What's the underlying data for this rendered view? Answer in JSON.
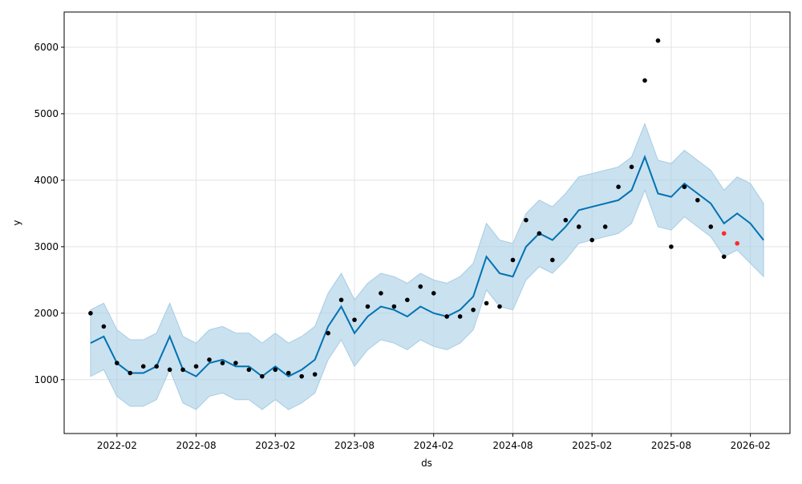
{
  "chart_data": {
    "type": "forecast",
    "xlabel": "ds",
    "ylabel": "y",
    "xlim": [
      "2021-10",
      "2026-05"
    ],
    "xticks": [
      "2022-02",
      "2022-08",
      "2023-02",
      "2023-08",
      "2024-02",
      "2024-08",
      "2025-02",
      "2025-08",
      "2026-02"
    ],
    "ylim": [
      190,
      6530
    ],
    "yticks": [
      1000,
      2000,
      3000,
      4000,
      5000,
      6000
    ],
    "grid": true,
    "forecast": {
      "color": "#0072b2",
      "band_color": "#a6cde4",
      "x": [
        "2021-12",
        "2022-01",
        "2022-02",
        "2022-03",
        "2022-04",
        "2022-05",
        "2022-06",
        "2022-07",
        "2022-08",
        "2022-09",
        "2022-10",
        "2022-11",
        "2022-12",
        "2023-01",
        "2023-02",
        "2023-03",
        "2023-04",
        "2023-05",
        "2023-06",
        "2023-07",
        "2023-08",
        "2023-09",
        "2023-10",
        "2023-11",
        "2023-12",
        "2024-01",
        "2024-02",
        "2024-03",
        "2024-04",
        "2024-05",
        "2024-06",
        "2024-07",
        "2024-08",
        "2024-09",
        "2024-10",
        "2024-11",
        "2024-12",
        "2025-01",
        "2025-02",
        "2025-03",
        "2025-04",
        "2025-05",
        "2025-06",
        "2025-07",
        "2025-08",
        "2025-09",
        "2025-10",
        "2025-11",
        "2025-12",
        "2026-01",
        "2026-02",
        "2026-03"
      ],
      "values": [
        1550,
        1650,
        1250,
        1100,
        1100,
        1200,
        1650,
        1150,
        1050,
        1250,
        1300,
        1200,
        1200,
        1050,
        1200,
        1050,
        1150,
        1300,
        1800,
        2100,
        1700,
        1950,
        2100,
        2050,
        1950,
        2100,
        2000,
        1950,
        2050,
        2250,
        2850,
        2600,
        2550,
        3000,
        3200,
        3100,
        3300,
        3550,
        3600,
        3650,
        3700,
        3850,
        4350,
        3800,
        3750,
        3950,
        3800,
        3650,
        3350,
        3500,
        3350,
        3100
      ],
      "lower": [
        1050,
        1150,
        750,
        600,
        600,
        700,
        1150,
        650,
        550,
        750,
        800,
        700,
        700,
        550,
        700,
        550,
        650,
        800,
        1300,
        1600,
        1200,
        1450,
        1600,
        1550,
        1450,
        1600,
        1500,
        1450,
        1550,
        1750,
        2350,
        2100,
        2050,
        2500,
        2700,
        2600,
        2800,
        3050,
        3100,
        3150,
        3200,
        3350,
        3850,
        3300,
        3250,
        3450,
        3300,
        3150,
        2850,
        2950,
        2750,
        2550
      ],
      "upper": [
        2050,
        2150,
        1750,
        1600,
        1600,
        1700,
        2150,
        1650,
        1550,
        1750,
        1800,
        1700,
        1700,
        1550,
        1700,
        1550,
        1650,
        1800,
        2300,
        2600,
        2200,
        2450,
        2600,
        2550,
        2450,
        2600,
        2500,
        2450,
        2550,
        2750,
        3350,
        3100,
        3050,
        3500,
        3700,
        3600,
        3800,
        4050,
        4100,
        4150,
        4200,
        4350,
        4850,
        4300,
        4250,
        4450,
        4300,
        4150,
        3850,
        4050,
        3950,
        3650
      ]
    },
    "observed": {
      "color": "#000000",
      "x": [
        "2021-12",
        "2022-01",
        "2022-02",
        "2022-03",
        "2022-04",
        "2022-05",
        "2022-06",
        "2022-07",
        "2022-08",
        "2022-09",
        "2022-10",
        "2022-11",
        "2022-12",
        "2023-01",
        "2023-02",
        "2023-03",
        "2023-04",
        "2023-05",
        "2023-06",
        "2023-07",
        "2023-08",
        "2023-09",
        "2023-10",
        "2023-11",
        "2023-12",
        "2024-01",
        "2024-02",
        "2024-03",
        "2024-04",
        "2024-05",
        "2024-06",
        "2024-07",
        "2024-08",
        "2024-09",
        "2024-10",
        "2024-11",
        "2024-12",
        "2025-01",
        "2025-02",
        "2025-03",
        "2025-04",
        "2025-05",
        "2025-06",
        "2025-07",
        "2025-08",
        "2025-09",
        "2025-10",
        "2025-11",
        "2025-12"
      ],
      "values": [
        2000,
        1800,
        1250,
        1100,
        1200,
        1200,
        1150,
        1150,
        1200,
        1300,
        1250,
        1250,
        1150,
        1050,
        1150,
        1100,
        1050,
        1080,
        1700,
        2200,
        1900,
        2100,
        2300,
        2100,
        2200,
        2400,
        2300,
        1950,
        1950,
        2050,
        2150,
        2100,
        2800,
        3400,
        3200,
        2800,
        3400,
        3300,
        3100,
        3300,
        3900,
        4200,
        5500,
        6100,
        3000,
        3900,
        3700,
        3300,
        2850
      ]
    },
    "holdout": {
      "color": "#ff2a2a",
      "x": [
        "2025-12",
        "2026-01"
      ],
      "values": [
        3200,
        3050
      ]
    }
  }
}
